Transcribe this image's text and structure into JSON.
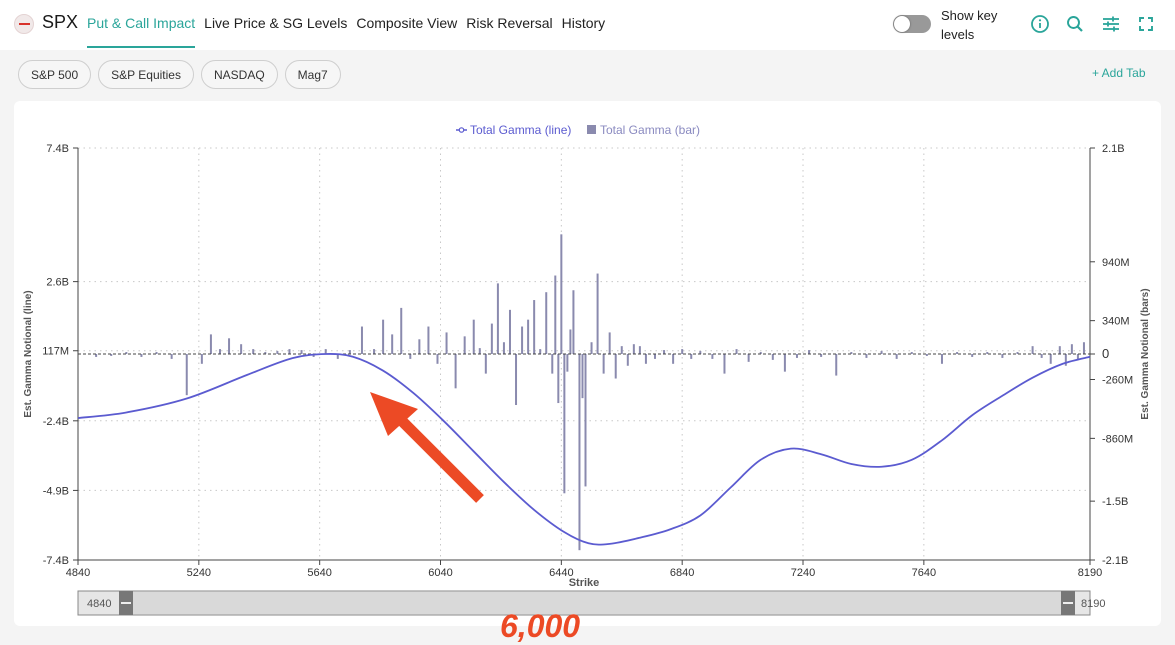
{
  "header": {
    "ticker": "SPX",
    "tabs": [
      {
        "label": "Put & Call Impact",
        "active": true
      },
      {
        "label": "Live Price & SG Levels",
        "active": false
      },
      {
        "label": "Composite View",
        "active": false
      },
      {
        "label": "Risk Reversal",
        "active": false
      },
      {
        "label": "History",
        "active": false
      }
    ],
    "toggle_label": "Show key levels",
    "tools": [
      "info-icon",
      "search-icon",
      "sliders-icon",
      "fullscreen-icon"
    ]
  },
  "chips": [
    "S&P 500",
    "S&P Equities",
    "NASDAQ",
    "Mag7"
  ],
  "add_tab_label": "+ Add Tab",
  "colors": {
    "accent": "#2aa59a",
    "line": "#5b5bd0",
    "bar": "#8a8aae",
    "annotation": "#ec4a25"
  },
  "annotation": "6,000",
  "chart_data": {
    "type": "line+bar",
    "legend": [
      {
        "label": "Total Gamma (line)",
        "marker": "line"
      },
      {
        "label": "Total Gamma (bar)",
        "marker": "square"
      }
    ],
    "legend_position": "top-center",
    "xlabel": "Strike",
    "ylabel_left": "Est. Gamma Notional (line)",
    "ylabel_right": "Est. Gamma Notional (bars)",
    "xlim": [
      4840,
      8190
    ],
    "x_ticks": [
      "4840",
      "5240",
      "5640",
      "6040",
      "6440",
      "6840",
      "7240",
      "7640",
      "8190"
    ],
    "ylim_left": [
      -7.4,
      7.4
    ],
    "y_ticks_left": [
      {
        "v": 7.4,
        "label": "7.4B"
      },
      {
        "v": 2.6,
        "label": "2.6B"
      },
      {
        "v": 0.117,
        "label": "117M"
      },
      {
        "v": -2.4,
        "label": "-2.4B"
      },
      {
        "v": -4.9,
        "label": "-4.9B"
      },
      {
        "v": -7.4,
        "label": "-7.4B"
      }
    ],
    "ylim_right": [
      -2.1,
      2.1
    ],
    "y_ticks_right": [
      {
        "v": 2.1,
        "label": "2.1B"
      },
      {
        "v": 0.94,
        "label": "940M"
      },
      {
        "v": 0.34,
        "label": "340M"
      },
      {
        "v": 0,
        "label": "0"
      },
      {
        "v": -0.26,
        "label": "-260M"
      },
      {
        "v": -0.86,
        "label": "-860M"
      },
      {
        "v": -1.5,
        "label": "-1.5B"
      },
      {
        "v": -2.1,
        "label": "-2.1B"
      }
    ],
    "grid": true,
    "zero_line": 0,
    "line_series": {
      "name": "Total Gamma (line)",
      "x": [
        4840,
        5000,
        5200,
        5400,
        5550,
        5660,
        5750,
        5850,
        5950,
        6050,
        6150,
        6250,
        6350,
        6450,
        6530,
        6600,
        6700,
        6800,
        6900,
        7000,
        7100,
        7200,
        7300,
        7400,
        7500,
        7600,
        7700,
        7800,
        7900,
        8000,
        8100,
        8190
      ],
      "values": [
        -2.3,
        -2.1,
        -1.6,
        -0.75,
        -0.15,
        0.0,
        -0.1,
        -0.6,
        -1.4,
        -2.4,
        -3.5,
        -4.6,
        -5.6,
        -6.4,
        -6.8,
        -6.82,
        -6.6,
        -6.3,
        -5.8,
        -4.8,
        -3.8,
        -3.4,
        -3.6,
        -3.95,
        -4.05,
        -3.8,
        -3.1,
        -2.2,
        -1.5,
        -0.85,
        -0.35,
        -0.1
      ]
    },
    "bar_series": {
      "name": "Total Gamma (bar)",
      "x": [
        4900,
        4950,
        5000,
        5050,
        5100,
        5150,
        5200,
        5250,
        5280,
        5310,
        5340,
        5380,
        5420,
        5460,
        5500,
        5540,
        5580,
        5620,
        5660,
        5700,
        5740,
        5780,
        5820,
        5850,
        5880,
        5910,
        5940,
        5970,
        6000,
        6030,
        6060,
        6090,
        6120,
        6150,
        6170,
        6190,
        6210,
        6230,
        6250,
        6270,
        6290,
        6310,
        6330,
        6350,
        6370,
        6390,
        6410,
        6420,
        6430,
        6440,
        6450,
        6460,
        6470,
        6480,
        6500,
        6510,
        6520,
        6540,
        6560,
        6580,
        6600,
        6620,
        6640,
        6660,
        6680,
        6700,
        6720,
        6750,
        6780,
        6810,
        6840,
        6870,
        6900,
        6940,
        6980,
        7020,
        7060,
        7100,
        7140,
        7180,
        7220,
        7260,
        7300,
        7350,
        7400,
        7450,
        7500,
        7550,
        7600,
        7650,
        7700,
        7750,
        7800,
        7850,
        7900,
        7950,
        8000,
        8030,
        8060,
        8090,
        8110,
        8130,
        8150,
        8170
      ],
      "values": [
        -0.03,
        -0.02,
        0.02,
        -0.03,
        0.02,
        -0.05,
        -0.42,
        -0.1,
        0.2,
        0.05,
        0.16,
        0.1,
        0.05,
        0.02,
        0.03,
        0.05,
        0.04,
        -0.03,
        0.05,
        -0.05,
        0.04,
        0.28,
        0.05,
        0.35,
        0.2,
        0.47,
        -0.05,
        0.15,
        0.28,
        -0.1,
        0.22,
        -0.35,
        0.18,
        0.35,
        0.06,
        -0.2,
        0.31,
        0.72,
        0.12,
        0.45,
        -0.52,
        0.28,
        0.35,
        0.55,
        0.05,
        0.63,
        -0.2,
        0.8,
        -0.5,
        1.22,
        -1.42,
        -0.18,
        0.25,
        0.65,
        -2.0,
        -0.45,
        -1.35,
        0.12,
        0.82,
        -0.2,
        0.22,
        -0.25,
        0.08,
        -0.12,
        0.1,
        0.08,
        -0.1,
        -0.05,
        0.04,
        -0.1,
        0.05,
        -0.05,
        0.03,
        -0.05,
        -0.2,
        0.05,
        -0.08,
        0.02,
        -0.06,
        -0.18,
        -0.04,
        0.04,
        -0.03,
        -0.22,
        0.02,
        -0.04,
        0.03,
        -0.05,
        0.02,
        -0.02,
        -0.1,
        0.02,
        -0.03,
        0.02,
        -0.04,
        0.02,
        0.08,
        -0.04,
        -0.1,
        0.08,
        -0.12,
        0.1,
        -0.06,
        0.12
      ]
    },
    "zoom_range": [
      4840,
      8190
    ],
    "zoom_labels": [
      "4840",
      "8190"
    ]
  }
}
